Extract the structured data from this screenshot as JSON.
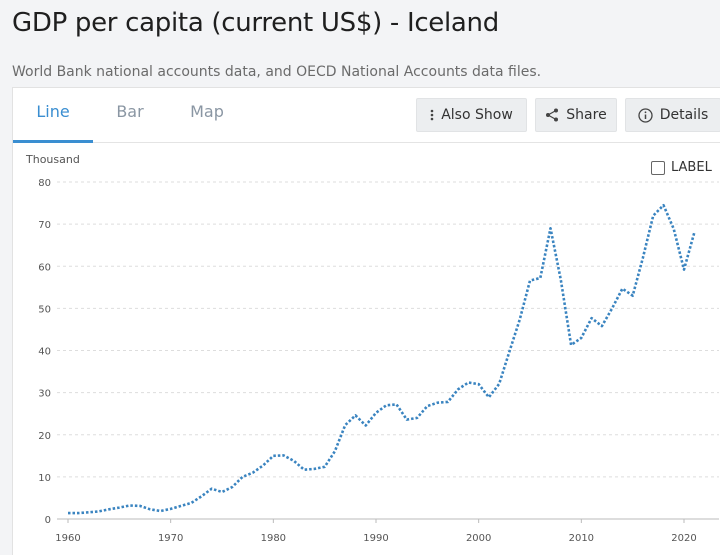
{
  "header": {
    "title": "GDP per capita (current US$) - Iceland",
    "subtitle": "World Bank national accounts data, and OECD National Accounts data files."
  },
  "tabs": [
    {
      "label": "Line",
      "active": true
    },
    {
      "label": "Bar",
      "active": false
    },
    {
      "label": "Map",
      "active": false
    }
  ],
  "toolbar": {
    "also_show_label": "Also Show",
    "also_show_icon": "vertical-ellipsis-icon",
    "share_label": "Share",
    "share_icon": "share-icon",
    "details_label": "Details",
    "details_icon": "info-icon"
  },
  "label_toggle": {
    "label": "LABEL",
    "checked": false
  },
  "colors": {
    "accent": "#3a8ed1",
    "line": "#3a84c0",
    "grid": "#dddddd"
  },
  "chart_data": {
    "type": "line",
    "unit_label": "Thousand",
    "title": "",
    "xlabel": "",
    "ylabel": "",
    "xlim": [
      1960,
      2021
    ],
    "ylim": [
      0,
      80
    ],
    "x_ticks": [
      1960,
      1970,
      1980,
      1990,
      2000,
      2010,
      2020
    ],
    "y_ticks": [
      0,
      10,
      20,
      30,
      40,
      50,
      60,
      70,
      80
    ],
    "grid": true,
    "legend": "none",
    "series": [
      {
        "name": "",
        "x": [
          1960,
          1961,
          1962,
          1963,
          1964,
          1965,
          1966,
          1967,
          1968,
          1969,
          1970,
          1971,
          1972,
          1973,
          1974,
          1975,
          1976,
          1977,
          1978,
          1979,
          1980,
          1981,
          1982,
          1983,
          1984,
          1985,
          1986,
          1987,
          1988,
          1989,
          1990,
          1991,
          1992,
          1993,
          1994,
          1995,
          1996,
          1997,
          1998,
          1999,
          2000,
          2001,
          2002,
          2003,
          2004,
          2005,
          2006,
          2007,
          2008,
          2009,
          2010,
          2011,
          2012,
          2013,
          2014,
          2015,
          2016,
          2017,
          2018,
          2019,
          2020,
          2021
        ],
        "values": [
          1.4,
          1.4,
          1.6,
          1.8,
          2.3,
          2.7,
          3.2,
          3.1,
          2.3,
          1.9,
          2.4,
          3.1,
          3.8,
          5.4,
          7.2,
          6.4,
          7.6,
          10.0,
          11.0,
          12.7,
          15.0,
          15.1,
          13.8,
          11.7,
          11.9,
          12.4,
          16.1,
          22.3,
          24.6,
          22.2,
          25.2,
          27.0,
          27.2,
          23.6,
          24.0,
          26.8,
          27.6,
          27.8,
          30.8,
          32.4,
          32.0,
          28.9,
          32.1,
          39.8,
          47.3,
          56.6,
          57.2,
          69.0,
          56.8,
          41.3,
          43.0,
          47.7,
          45.8,
          50.0,
          54.7,
          53.0,
          62.0,
          72.0,
          74.5,
          68.9,
          59.2,
          68.0
        ]
      }
    ]
  }
}
